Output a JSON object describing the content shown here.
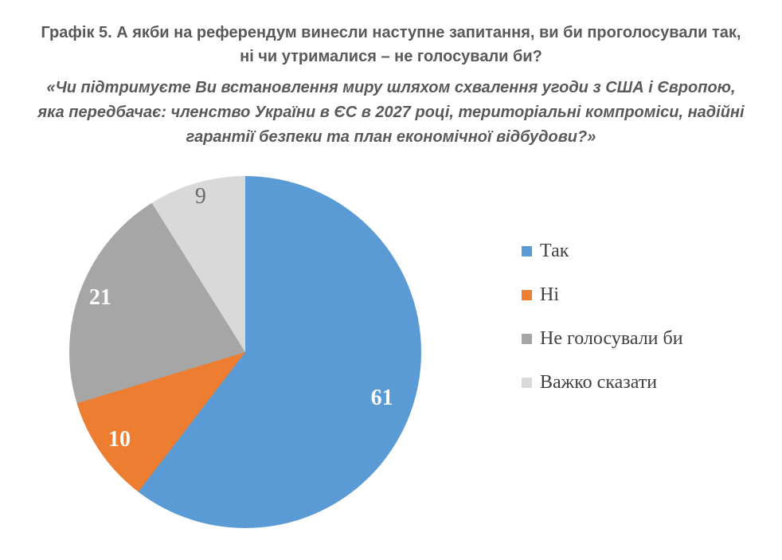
{
  "header": {
    "title_display": "Графік 5. А якби на референдум винесли наступне запитання, ви би проголосували так,\nні чи утрималися – не голосували би?",
    "subtitle_display": "«Чи підтримуєте Ви встановлення миру шляхом схвалення угоди з США і Європою,\nяка передбачає: членство України в ЄС в 2027 році, територіальні компроміси, надійні\nгарантії безпеки та план економічної відбудови?»"
  },
  "chart_data": {
    "type": "pie",
    "title": "Графік 5. А якби на референдум винесли наступне запитання, ви би проголосували так, ні чи утрималися – не голосували би?",
    "subtitle": "«Чи підтримуєте Ви встановлення миру шляхом схвалення угоди з США і Європою, яка передбачає: членство України в ЄС в 2027 році, територіальні компроміси, надійні гарантії безпеки та план економічної відбудови?»",
    "categories": [
      "Так",
      "Ні",
      "Не голосували би",
      "Важко сказати"
    ],
    "values": [
      61,
      10,
      21,
      9
    ],
    "colors": [
      "#5B9BD5",
      "#ED7D31",
      "#A6A6A6",
      "#D9D9D9"
    ],
    "data_label_colors": [
      "#FDFDFB",
      "#FDFDFB",
      "#FDFDFB",
      "#6A6A6A"
    ],
    "start_angle_deg": 0,
    "direction": "clockwise",
    "data_labels_position": "inside",
    "legend_position": "right",
    "title_color": "#595959",
    "legend_text_color": "#404040"
  }
}
